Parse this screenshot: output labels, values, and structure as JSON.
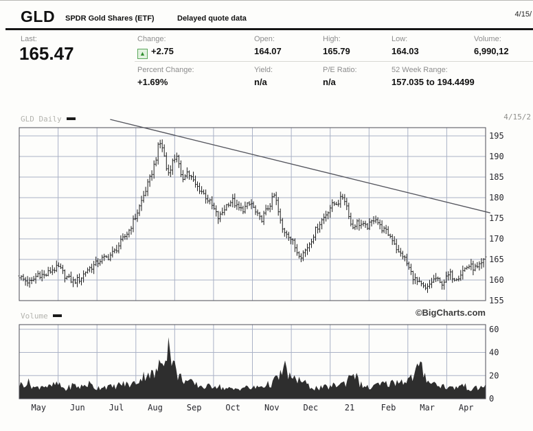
{
  "header": {
    "symbol": "GLD",
    "name": "SPDR Gold Shares (ETF)",
    "delayed_note": "Delayed quote data",
    "date": "4/15/"
  },
  "quote": {
    "labels": {
      "last": "Last:",
      "change": "Change:",
      "percent_change": "Percent Change:",
      "open": "Open:",
      "high": "High:",
      "low": "Low:",
      "volume": "Volume:",
      "yield": "Yield:",
      "pe_ratio": "P/E Ratio:",
      "week52_range": "52 Week Range:"
    },
    "last": "165.47",
    "change": "+2.75",
    "change_arrow": "▲",
    "percent_change": "+1.69%",
    "open": "164.07",
    "high": "165.79",
    "low": "164.03",
    "volume": "6,990,12",
    "yield": "n/a",
    "pe_ratio": "n/a",
    "week52_range": "157.035 to 194.4499",
    "change_color": "#2f8f2f"
  },
  "chart": {
    "price_label": "GLD Daily",
    "volume_label": "Volume",
    "date_label": "4/15/2",
    "watermark": "©BigCharts.com"
  },
  "chart_data": [
    {
      "type": "ohlc",
      "title": "GLD Daily",
      "x_tick_labels": [
        "May",
        "Jun",
        "Jul",
        "Aug",
        "Sep",
        "Oct",
        "Nov",
        "Dec",
        "21",
        "Feb",
        "Mar",
        "Apr"
      ],
      "ylim": [
        155,
        197
      ],
      "yticks": [
        155,
        160,
        165,
        170,
        175,
        180,
        185,
        190,
        195
      ],
      "grid": true,
      "legend_position": "top-left",
      "bar_color": "#1c1c1c",
      "grid_color": "#a9b1c6",
      "trendline": {
        "x1": 0.195,
        "price1": 199.0,
        "x2": 1.01,
        "price2": 176.3,
        "color": "#55565e"
      },
      "close_path": [
        [
          0.0,
          161.0
        ],
        [
          0.01,
          160.0
        ],
        [
          0.025,
          159.3
        ],
        [
          0.04,
          161.5
        ],
        [
          0.055,
          161.0
        ],
        [
          0.07,
          162.5
        ],
        [
          0.085,
          163.0
        ],
        [
          0.1,
          160.8
        ],
        [
          0.115,
          159.6
        ],
        [
          0.13,
          160.2
        ],
        [
          0.145,
          162.5
        ],
        [
          0.16,
          163.5
        ],
        [
          0.175,
          165.0
        ],
        [
          0.19,
          165.5
        ],
        [
          0.205,
          167.0
        ],
        [
          0.22,
          169.5
        ],
        [
          0.235,
          172.0
        ],
        [
          0.25,
          175.5
        ],
        [
          0.265,
          180.0
        ],
        [
          0.28,
          184.5
        ],
        [
          0.292,
          189.0
        ],
        [
          0.3,
          193.5
        ],
        [
          0.308,
          192.0
        ],
        [
          0.318,
          185.5
        ],
        [
          0.328,
          188.5
        ],
        [
          0.338,
          190.5
        ],
        [
          0.348,
          184.0
        ],
        [
          0.358,
          186.5
        ],
        [
          0.368,
          185.0
        ],
        [
          0.378,
          183.0
        ],
        [
          0.388,
          182.0
        ],
        [
          0.398,
          180.5
        ],
        [
          0.408,
          179.0
        ],
        [
          0.418,
          177.0
        ],
        [
          0.428,
          174.8
        ],
        [
          0.438,
          177.0
        ],
        [
          0.448,
          178.8
        ],
        [
          0.458,
          179.2
        ],
        [
          0.468,
          177.5
        ],
        [
          0.478,
          177.0
        ],
        [
          0.488,
          178.0
        ],
        [
          0.498,
          178.5
        ],
        [
          0.508,
          176.0
        ],
        [
          0.518,
          174.5
        ],
        [
          0.528,
          176.5
        ],
        [
          0.538,
          178.5
        ],
        [
          0.548,
          180.8
        ],
        [
          0.558,
          175.0
        ],
        [
          0.565,
          172.0
        ],
        [
          0.575,
          171.5
        ],
        [
          0.585,
          169.5
        ],
        [
          0.595,
          167.0
        ],
        [
          0.605,
          166.0
        ],
        [
          0.615,
          167.5
        ],
        [
          0.625,
          169.5
        ],
        [
          0.635,
          172.0
        ],
        [
          0.645,
          174.0
        ],
        [
          0.655,
          175.5
        ],
        [
          0.665,
          177.5
        ],
        [
          0.675,
          178.5
        ],
        [
          0.685,
          179.0
        ],
        [
          0.695,
          180.5
        ],
        [
          0.705,
          177.0
        ],
        [
          0.713,
          172.5
        ],
        [
          0.723,
          174.0
        ],
        [
          0.733,
          173.5
        ],
        [
          0.743,
          172.8
        ],
        [
          0.753,
          173.5
        ],
        [
          0.763,
          175.5
        ],
        [
          0.773,
          173.0
        ],
        [
          0.783,
          172.0
        ],
        [
          0.793,
          171.0
        ],
        [
          0.803,
          169.5
        ],
        [
          0.813,
          166.5
        ],
        [
          0.823,
          166.0
        ],
        [
          0.833,
          163.5
        ],
        [
          0.843,
          161.0
        ],
        [
          0.853,
          159.5
        ],
        [
          0.863,
          158.5
        ],
        [
          0.873,
          157.5
        ],
        [
          0.883,
          159.5
        ],
        [
          0.893,
          160.5
        ],
        [
          0.903,
          159.0
        ],
        [
          0.913,
          160.0
        ],
        [
          0.923,
          161.5
        ],
        [
          0.933,
          160.5
        ],
        [
          0.943,
          161.0
        ],
        [
          0.953,
          162.5
        ],
        [
          0.963,
          163.5
        ],
        [
          0.973,
          163.0
        ],
        [
          0.983,
          162.8
        ],
        [
          0.993,
          164.0
        ],
        [
          1.0,
          165.5
        ]
      ]
    },
    {
      "type": "area",
      "title": "Volume",
      "ylim": [
        0,
        64
      ],
      "yticks": [
        0,
        20,
        40,
        60
      ],
      "fill_color": "#2e2e2e",
      "volume_path": [
        [
          0.0,
          12
        ],
        [
          0.02,
          14
        ],
        [
          0.035,
          9
        ],
        [
          0.05,
          12
        ],
        [
          0.065,
          10
        ],
        [
          0.08,
          13
        ],
        [
          0.1,
          8
        ],
        [
          0.115,
          12
        ],
        [
          0.13,
          10
        ],
        [
          0.15,
          13
        ],
        [
          0.165,
          9
        ],
        [
          0.18,
          11
        ],
        [
          0.2,
          10
        ],
        [
          0.22,
          13
        ],
        [
          0.24,
          12
        ],
        [
          0.26,
          17
        ],
        [
          0.275,
          23
        ],
        [
          0.29,
          20
        ],
        [
          0.3,
          28
        ],
        [
          0.312,
          38
        ],
        [
          0.32,
          48
        ],
        [
          0.328,
          34
        ],
        [
          0.34,
          20
        ],
        [
          0.36,
          15
        ],
        [
          0.38,
          12
        ],
        [
          0.4,
          10
        ],
        [
          0.42,
          12
        ],
        [
          0.44,
          9
        ],
        [
          0.46,
          8
        ],
        [
          0.48,
          10
        ],
        [
          0.5,
          9
        ],
        [
          0.52,
          11
        ],
        [
          0.54,
          13
        ],
        [
          0.555,
          18
        ],
        [
          0.57,
          27
        ],
        [
          0.585,
          16
        ],
        [
          0.6,
          17
        ],
        [
          0.62,
          11
        ],
        [
          0.64,
          9
        ],
        [
          0.66,
          10
        ],
        [
          0.68,
          12
        ],
        [
          0.7,
          14
        ],
        [
          0.715,
          25
        ],
        [
          0.73,
          13
        ],
        [
          0.75,
          9
        ],
        [
          0.77,
          12
        ],
        [
          0.79,
          13
        ],
        [
          0.81,
          15
        ],
        [
          0.83,
          16
        ],
        [
          0.845,
          19
        ],
        [
          0.858,
          29
        ],
        [
          0.875,
          17
        ],
        [
          0.89,
          13
        ],
        [
          0.91,
          11
        ],
        [
          0.93,
          9
        ],
        [
          0.95,
          12
        ],
        [
          0.97,
          8
        ],
        [
          0.99,
          10
        ],
        [
          1.0,
          11
        ]
      ]
    }
  ]
}
